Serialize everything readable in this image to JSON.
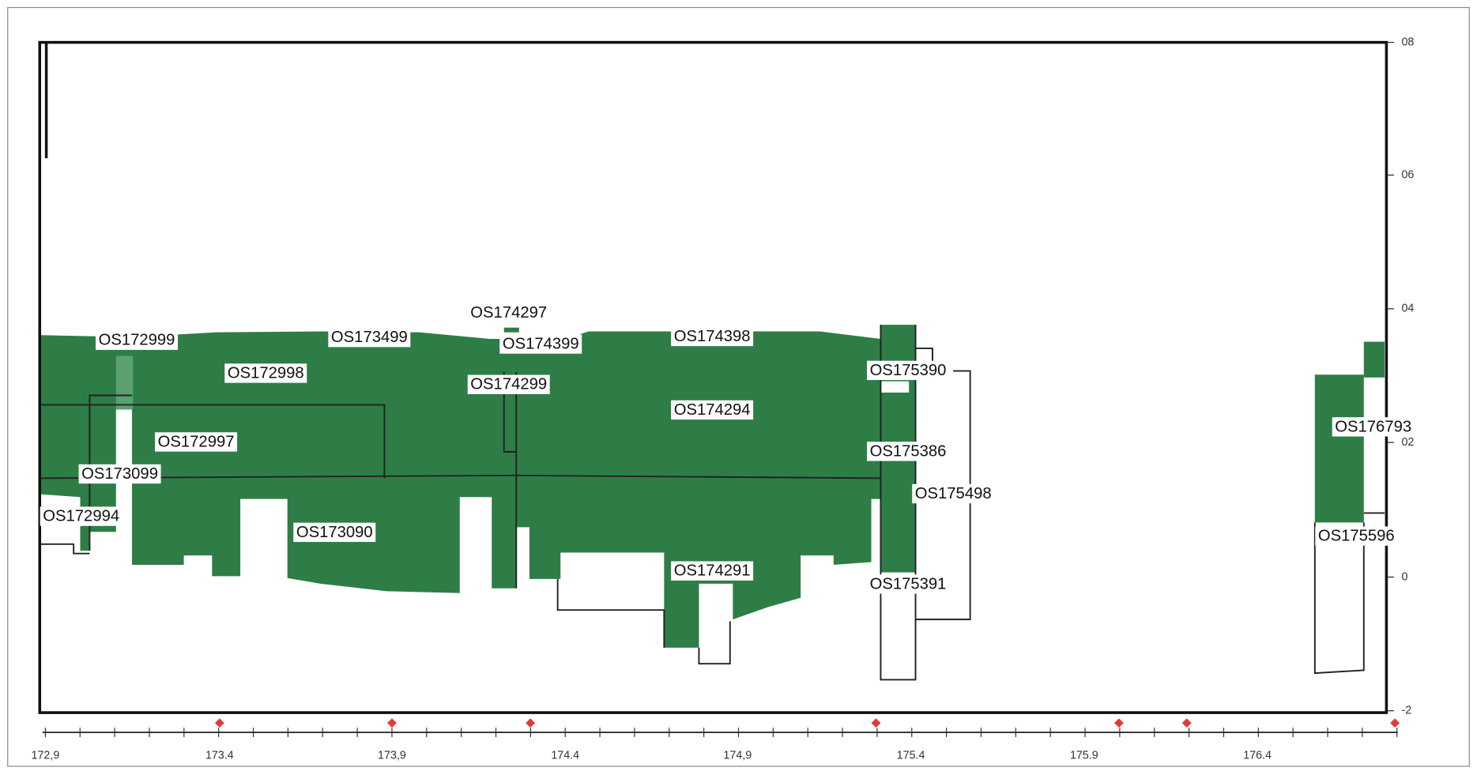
{
  "x_axis": {
    "ticks": [
      "172,9",
      "173.4",
      "173,9",
      "174.4",
      "174,9",
      "175.4",
      "175.9",
      "176.4"
    ]
  },
  "y_axis": {
    "ticks": [
      "08",
      "06",
      "04",
      "02",
      "0",
      "-2"
    ]
  },
  "labels": [
    "OS172999",
    "OS173499",
    "OS174297",
    "OS174399",
    "OS174398",
    "OS172998",
    "OS174299",
    "OS174294",
    "OS175390",
    "OS176793",
    "OS172997",
    "OS175386",
    "OS173099",
    "OS175498",
    "OS172994",
    "OS173090",
    "OS175596",
    "OS174291",
    "OS175391"
  ]
}
